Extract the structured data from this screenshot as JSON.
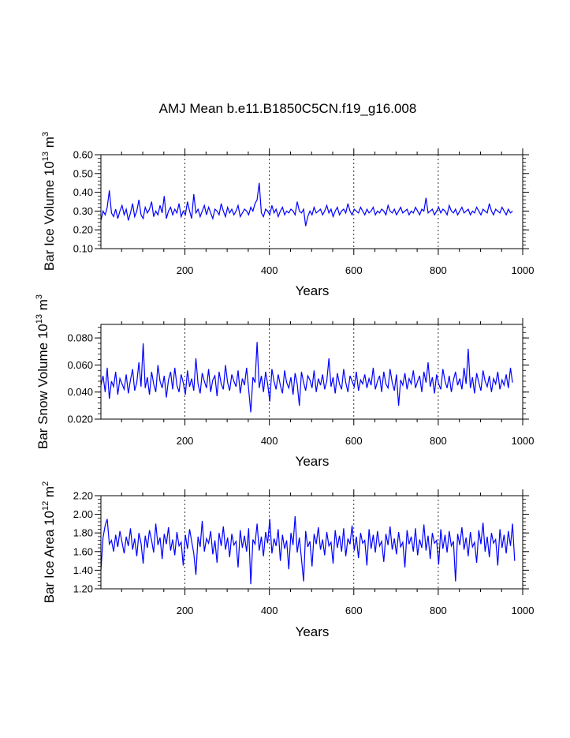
{
  "figure": {
    "title": "AMJ Mean b.e11.B1850C5CN.f19_g16.008"
  },
  "colors": {
    "series": "#0000ff",
    "axes": "#000000",
    "grid": "#000000"
  },
  "chart_data": [
    {
      "type": "line",
      "xlabel": "Years",
      "ylabel": "Bar Ice Volume 10",
      "ylabel_exp": "13",
      "ylabel_unit": "m",
      "ylabel_unit_exp": "3",
      "xlim": [
        1,
        1000
      ],
      "ylim": [
        0.1,
        0.6
      ],
      "xticks": [
        200,
        400,
        600,
        800,
        1000
      ],
      "xtick_labels": [
        "200",
        "400",
        "600",
        "800",
        "1000"
      ],
      "yticks": [
        0.1,
        0.2,
        0.3,
        0.4,
        0.5,
        0.6
      ],
      "ytick_labels": [
        "0.10",
        "0.20",
        "0.30",
        "0.40",
        "0.50",
        "0.60"
      ],
      "grid": "vertical dashed at x ticks",
      "series": [
        {
          "x_start": 1,
          "x_step": 5,
          "values": [
            0.25,
            0.3,
            0.28,
            0.32,
            0.41,
            0.29,
            0.27,
            0.31,
            0.26,
            0.3,
            0.33,
            0.28,
            0.31,
            0.25,
            0.29,
            0.34,
            0.27,
            0.3,
            0.36,
            0.28,
            0.26,
            0.32,
            0.29,
            0.31,
            0.35,
            0.27,
            0.3,
            0.28,
            0.33,
            0.29,
            0.38,
            0.26,
            0.3,
            0.32,
            0.28,
            0.31,
            0.29,
            0.34,
            0.27,
            0.3,
            0.28,
            0.35,
            0.3,
            0.26,
            0.39,
            0.29,
            0.31,
            0.27,
            0.3,
            0.33,
            0.28,
            0.32,
            0.29,
            0.26,
            0.31,
            0.3,
            0.28,
            0.34,
            0.3,
            0.27,
            0.32,
            0.29,
            0.31,
            0.28,
            0.3,
            0.33,
            0.27,
            0.29,
            0.31,
            0.3,
            0.28,
            0.32,
            0.3,
            0.34,
            0.36,
            0.45,
            0.29,
            0.27,
            0.31,
            0.3,
            0.28,
            0.33,
            0.29,
            0.31,
            0.27,
            0.3,
            0.32,
            0.28,
            0.3,
            0.29,
            0.31,
            0.3,
            0.28,
            0.35,
            0.3,
            0.29,
            0.31,
            0.22,
            0.27,
            0.3,
            0.28,
            0.32,
            0.29,
            0.3,
            0.31,
            0.28,
            0.3,
            0.33,
            0.29,
            0.31,
            0.27,
            0.3,
            0.32,
            0.28,
            0.3,
            0.31,
            0.29,
            0.34,
            0.3,
            0.28,
            0.31,
            0.3,
            0.29,
            0.32,
            0.3,
            0.28,
            0.31,
            0.29,
            0.3,
            0.32,
            0.28,
            0.3,
            0.29,
            0.31,
            0.3,
            0.28,
            0.33,
            0.3,
            0.29,
            0.31,
            0.28,
            0.3,
            0.32,
            0.29,
            0.3,
            0.31,
            0.28,
            0.3,
            0.29,
            0.32,
            0.3,
            0.28,
            0.31,
            0.3,
            0.37,
            0.29,
            0.3,
            0.31,
            0.28,
            0.3,
            0.32,
            0.29,
            0.31,
            0.3,
            0.28,
            0.33,
            0.3,
            0.29,
            0.31,
            0.28,
            0.3,
            0.32,
            0.29,
            0.3,
            0.31,
            0.28,
            0.3,
            0.29,
            0.32,
            0.3,
            0.28,
            0.31,
            0.3,
            0.29,
            0.34,
            0.3,
            0.28,
            0.31,
            0.3,
            0.29,
            0.32,
            0.3,
            0.28,
            0.31,
            0.29,
            0.3
          ]
        }
      ]
    },
    {
      "type": "line",
      "xlabel": "Years",
      "ylabel": "Bar Snow Volume 10",
      "ylabel_exp": "13",
      "ylabel_unit": "m",
      "ylabel_unit_exp": "3",
      "xlim": [
        1,
        1000
      ],
      "ylim": [
        0.02,
        0.09
      ],
      "xticks": [
        200,
        400,
        600,
        800,
        1000
      ],
      "xtick_labels": [
        "200",
        "400",
        "600",
        "800",
        "1000"
      ],
      "yticks": [
        0.02,
        0.04,
        0.06,
        0.08
      ],
      "ytick_labels": [
        "0.020",
        "0.040",
        "0.060",
        "0.080"
      ],
      "grid": "vertical dashed at x ticks",
      "series": [
        {
          "x_start": 1,
          "x_step": 5,
          "values": [
            0.045,
            0.052,
            0.04,
            0.058,
            0.035,
            0.048,
            0.044,
            0.055,
            0.038,
            0.05,
            0.046,
            0.042,
            0.053,
            0.039,
            0.049,
            0.057,
            0.041,
            0.047,
            0.062,
            0.044,
            0.076,
            0.043,
            0.051,
            0.038,
            0.055,
            0.046,
            0.04,
            0.06,
            0.048,
            0.043,
            0.052,
            0.036,
            0.049,
            0.055,
            0.042,
            0.058,
            0.045,
            0.04,
            0.053,
            0.047,
            0.038,
            0.056,
            0.044,
            0.05,
            0.041,
            0.065,
            0.046,
            0.039,
            0.054,
            0.048,
            0.043,
            0.057,
            0.04,
            0.049,
            0.052,
            0.037,
            0.055,
            0.046,
            0.042,
            0.06,
            0.047,
            0.041,
            0.053,
            0.048,
            0.044,
            0.056,
            0.039,
            0.05,
            0.045,
            0.058,
            0.042,
            0.025,
            0.051,
            0.047,
            0.077,
            0.043,
            0.052,
            0.04,
            0.055,
            0.046,
            0.033,
            0.057,
            0.048,
            0.042,
            0.053,
            0.045,
            0.039,
            0.056,
            0.047,
            0.043,
            0.051,
            0.038,
            0.054,
            0.046,
            0.03,
            0.055,
            0.047,
            0.041,
            0.052,
            0.049,
            0.043,
            0.056,
            0.04,
            0.05,
            0.045,
            0.053,
            0.042,
            0.048,
            0.065,
            0.044,
            0.051,
            0.039,
            0.054,
            0.046,
            0.042,
            0.057,
            0.047,
            0.04,
            0.052,
            0.048,
            0.044,
            0.055,
            0.041,
            0.049,
            0.046,
            0.053,
            0.043,
            0.05,
            0.045,
            0.058,
            0.042,
            0.048,
            0.052,
            0.04,
            0.055,
            0.046,
            0.043,
            0.057,
            0.047,
            0.041,
            0.053,
            0.03,
            0.049,
            0.045,
            0.054,
            0.042,
            0.05,
            0.046,
            0.056,
            0.043,
            0.048,
            0.052,
            0.04,
            0.055,
            0.047,
            0.062,
            0.044,
            0.051,
            0.039,
            0.053,
            0.046,
            0.042,
            0.057,
            0.048,
            0.043,
            0.052,
            0.04,
            0.049,
            0.055,
            0.045,
            0.05,
            0.042,
            0.058,
            0.046,
            0.072,
            0.043,
            0.051,
            0.039,
            0.054,
            0.047,
            0.041,
            0.056,
            0.048,
            0.044,
            0.052,
            0.04,
            0.05,
            0.046,
            0.055,
            0.042,
            0.049,
            0.045,
            0.053,
            0.043,
            0.058,
            0.047
          ]
        }
      ]
    },
    {
      "type": "line",
      "xlabel": "Years",
      "ylabel": "Bar Ice Area 10",
      "ylabel_exp": "12",
      "ylabel_unit": "m",
      "ylabel_unit_exp": "2",
      "xlim": [
        1,
        1000
      ],
      "ylim": [
        1.2,
        2.2
      ],
      "xticks": [
        200,
        400,
        600,
        800,
        1000
      ],
      "xtick_labels": [
        "200",
        "400",
        "600",
        "800",
        "1000"
      ],
      "yticks": [
        1.2,
        1.4,
        1.6,
        1.8,
        2.0,
        2.2
      ],
      "ytick_labels": [
        "1.20",
        "1.40",
        "1.60",
        "1.80",
        "2.00",
        "2.20"
      ],
      "grid": "vertical dashed at x ticks",
      "series": [
        {
          "x_start": 1,
          "x_step": 5,
          "values": [
            1.4,
            1.75,
            1.88,
            1.95,
            1.68,
            1.72,
            1.6,
            1.78,
            1.65,
            1.82,
            1.7,
            1.58,
            1.76,
            1.66,
            1.85,
            1.62,
            1.74,
            1.55,
            1.8,
            1.69,
            1.47,
            1.77,
            1.64,
            1.83,
            1.72,
            1.59,
            1.9,
            1.67,
            1.75,
            1.52,
            1.79,
            1.68,
            1.86,
            1.61,
            1.73,
            1.56,
            1.81,
            1.66,
            1.7,
            1.45,
            1.78,
            1.63,
            1.84,
            1.71,
            1.58,
            1.35,
            1.76,
            1.65,
            1.93,
            1.6,
            1.74,
            1.69,
            1.82,
            1.57,
            1.72,
            1.48,
            1.8,
            1.66,
            1.87,
            1.62,
            1.75,
            1.54,
            1.79,
            1.67,
            1.71,
            1.43,
            1.83,
            1.64,
            1.77,
            1.6,
            1.85,
            1.25,
            1.73,
            1.68,
            1.9,
            1.61,
            1.76,
            1.55,
            1.81,
            1.69,
            1.95,
            1.58,
            1.74,
            1.66,
            1.84,
            1.5,
            1.78,
            1.63,
            1.72,
            1.41,
            1.8,
            1.67,
            1.98,
            1.59,
            1.75,
            1.52,
            1.28,
            1.82,
            1.65,
            1.71,
            1.44,
            1.79,
            1.68,
            1.86,
            1.62,
            1.73,
            1.56,
            1.81,
            1.66,
            1.7,
            1.47,
            1.83,
            1.64,
            1.77,
            1.6,
            1.85,
            1.55,
            1.74,
            1.68,
            1.88,
            1.61,
            1.76,
            1.53,
            1.8,
            1.69,
            1.72,
            1.45,
            1.84,
            1.63,
            1.78,
            1.59,
            1.82,
            1.66,
            1.71,
            1.49,
            1.79,
            1.67,
            1.87,
            1.62,
            1.74,
            1.57,
            1.81,
            1.65,
            1.7,
            1.43,
            1.83,
            1.68,
            1.76,
            1.6,
            1.85,
            1.56,
            1.73,
            1.64,
            1.89,
            1.61,
            1.77,
            1.52,
            1.8,
            1.69,
            1.72,
            1.46,
            1.84,
            1.63,
            1.78,
            1.59,
            1.82,
            1.66,
            1.71,
            1.28,
            1.79,
            1.67,
            1.86,
            1.62,
            1.75,
            1.55,
            1.81,
            1.65,
            1.7,
            1.48,
            1.83,
            1.68,
            1.91,
            1.6,
            1.76,
            1.54,
            1.8,
            1.69,
            1.73,
            1.45,
            1.84,
            1.64,
            1.78,
            1.58,
            1.82,
            1.66,
            1.9,
            1.5
          ]
        }
      ]
    }
  ]
}
